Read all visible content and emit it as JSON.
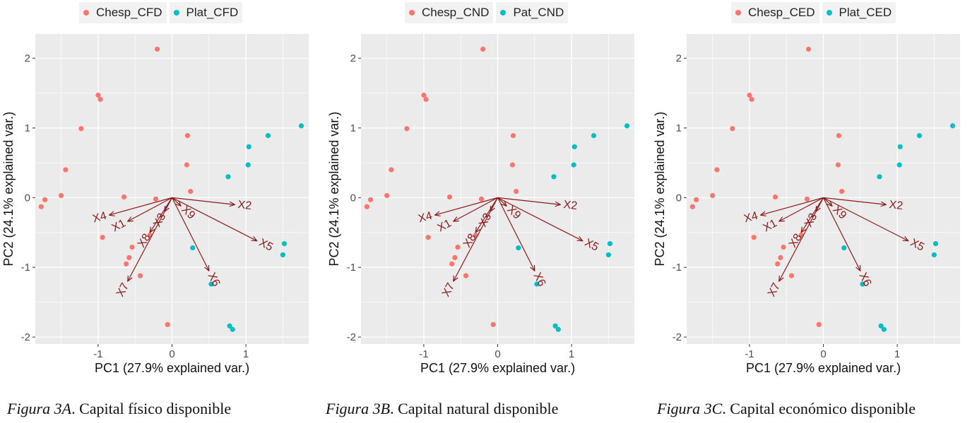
{
  "colors": {
    "group1": "#F8766D",
    "group2": "#00BFC4",
    "arrow": "#8B1A1A",
    "panel_bg": "#EBEBEB",
    "grid": "#FFFFFF"
  },
  "chart_data": [
    {
      "type": "scatter",
      "id": "A",
      "xlabel": "PC1 (27.9% explained var.)",
      "ylabel": "PC2 (24.1% explained var.)",
      "xlim": [
        -1.85,
        1.85
      ],
      "ylim": [
        -2.1,
        2.35
      ],
      "xticks": [
        -1,
        0,
        1
      ],
      "yticks": [
        -2,
        -1,
        0,
        1,
        2
      ],
      "legend": [
        "Chesp_CFD",
        "Plat_CFD"
      ],
      "series": [
        {
          "name": "Chesp_CFD",
          "points": [
            [
              -1.77,
              -0.13
            ],
            [
              -1.72,
              -0.03
            ],
            [
              -1.5,
              0.03
            ],
            [
              -1.44,
              0.4
            ],
            [
              -1.23,
              0.99
            ],
            [
              -1.0,
              1.47
            ],
            [
              -0.97,
              1.41
            ],
            [
              -0.94,
              -0.57
            ],
            [
              -0.65,
              0.01
            ],
            [
              -0.62,
              -0.95
            ],
            [
              -0.58,
              -0.86
            ],
            [
              -0.54,
              -0.71
            ],
            [
              -0.43,
              -1.12
            ],
            [
              -0.3,
              -0.54
            ],
            [
              -0.22,
              -0.02
            ],
            [
              -0.2,
              2.13
            ],
            [
              -0.06,
              -1.82
            ],
            [
              0.2,
              0.47
            ],
            [
              0.21,
              0.89
            ],
            [
              0.25,
              0.09
            ]
          ]
        },
        {
          "name": "Plat_CFD",
          "points": [
            [
              0.28,
              -0.72
            ],
            [
              0.53,
              -1.24
            ],
            [
              0.76,
              0.3
            ],
            [
              0.78,
              -1.84
            ],
            [
              0.82,
              -1.89
            ],
            [
              1.03,
              0.47
            ],
            [
              1.04,
              0.73
            ],
            [
              1.3,
              0.89
            ],
            [
              1.5,
              -0.82
            ],
            [
              1.52,
              -0.66
            ],
            [
              1.75,
              1.03
            ]
          ]
        }
      ],
      "loadings": [
        {
          "label": "X2",
          "x": 0.85,
          "y": -0.1
        },
        {
          "label": "X5",
          "x": 1.15,
          "y": -0.62
        },
        {
          "label": "X6",
          "x": 0.5,
          "y": -1.05
        },
        {
          "label": "X4",
          "x": -0.85,
          "y": -0.25
        },
        {
          "label": "X1",
          "x": -0.6,
          "y": -0.34
        },
        {
          "label": "X7",
          "x": -0.6,
          "y": -1.2
        },
        {
          "label": "X8",
          "x": -0.3,
          "y": -0.5
        },
        {
          "label": "X3",
          "x": -0.1,
          "y": -0.2
        },
        {
          "label": "X9",
          "x": 0.12,
          "y": -0.12
        }
      ]
    },
    {
      "type": "scatter",
      "id": "B",
      "xlabel": "PC1 (27.9% explained var.)",
      "ylabel": "PC2 (24.1% explained var.)",
      "xlim": [
        -1.85,
        1.85
      ],
      "ylim": [
        -2.1,
        2.35
      ],
      "xticks": [
        -1,
        0,
        1
      ],
      "yticks": [
        -2,
        -1,
        0,
        1,
        2
      ],
      "legend": [
        "Chesp_CND",
        "Pat_CND"
      ],
      "series": [
        {
          "name": "Chesp_CND",
          "points": [
            [
              -1.77,
              -0.13
            ],
            [
              -1.72,
              -0.03
            ],
            [
              -1.5,
              0.03
            ],
            [
              -1.44,
              0.4
            ],
            [
              -1.23,
              0.99
            ],
            [
              -1.0,
              1.47
            ],
            [
              -0.97,
              1.41
            ],
            [
              -0.94,
              -0.57
            ],
            [
              -0.65,
              0.01
            ],
            [
              -0.62,
              -0.95
            ],
            [
              -0.58,
              -0.86
            ],
            [
              -0.54,
              -0.71
            ],
            [
              -0.43,
              -1.12
            ],
            [
              -0.3,
              -0.54
            ],
            [
              -0.22,
              -0.02
            ],
            [
              -0.2,
              2.13
            ],
            [
              -0.06,
              -1.82
            ],
            [
              0.2,
              0.47
            ],
            [
              0.21,
              0.89
            ],
            [
              0.25,
              0.09
            ]
          ]
        },
        {
          "name": "Pat_CND",
          "points": [
            [
              0.28,
              -0.72
            ],
            [
              0.53,
              -1.24
            ],
            [
              0.76,
              0.3
            ],
            [
              0.78,
              -1.84
            ],
            [
              0.82,
              -1.89
            ],
            [
              1.03,
              0.47
            ],
            [
              1.04,
              0.73
            ],
            [
              1.3,
              0.89
            ],
            [
              1.5,
              -0.82
            ],
            [
              1.52,
              -0.66
            ],
            [
              1.75,
              1.03
            ]
          ]
        }
      ],
      "loadings": [
        {
          "label": "X2",
          "x": 0.85,
          "y": -0.1
        },
        {
          "label": "X5",
          "x": 1.15,
          "y": -0.62
        },
        {
          "label": "X6",
          "x": 0.5,
          "y": -1.05
        },
        {
          "label": "X4",
          "x": -0.85,
          "y": -0.25
        },
        {
          "label": "X1",
          "x": -0.6,
          "y": -0.34
        },
        {
          "label": "X7",
          "x": -0.6,
          "y": -1.2
        },
        {
          "label": "X8",
          "x": -0.3,
          "y": -0.5
        },
        {
          "label": "X3",
          "x": -0.1,
          "y": -0.2
        },
        {
          "label": "X9",
          "x": 0.12,
          "y": -0.12
        }
      ]
    },
    {
      "type": "scatter",
      "id": "C",
      "xlabel": "PC1 (27.9% explained var.)",
      "ylabel": "PC2 (24.1% explained var.)",
      "xlim": [
        -1.85,
        1.85
      ],
      "ylim": [
        -2.1,
        2.35
      ],
      "xticks": [
        -1,
        0,
        1
      ],
      "yticks": [
        -2,
        -1,
        0,
        1,
        2
      ],
      "legend": [
        "Chesp_CED",
        "Plat_CED"
      ],
      "series": [
        {
          "name": "Chesp_CED",
          "points": [
            [
              -1.77,
              -0.13
            ],
            [
              -1.72,
              -0.03
            ],
            [
              -1.5,
              0.03
            ],
            [
              -1.44,
              0.4
            ],
            [
              -1.23,
              0.99
            ],
            [
              -1.0,
              1.47
            ],
            [
              -0.97,
              1.41
            ],
            [
              -0.94,
              -0.57
            ],
            [
              -0.65,
              0.01
            ],
            [
              -0.62,
              -0.95
            ],
            [
              -0.58,
              -0.86
            ],
            [
              -0.54,
              -0.71
            ],
            [
              -0.43,
              -1.12
            ],
            [
              -0.3,
              -0.54
            ],
            [
              -0.22,
              -0.02
            ],
            [
              -0.2,
              2.13
            ],
            [
              -0.06,
              -1.82
            ],
            [
              0.2,
              0.47
            ],
            [
              0.21,
              0.89
            ],
            [
              0.25,
              0.09
            ]
          ]
        },
        {
          "name": "Plat_CED",
          "points": [
            [
              0.28,
              -0.72
            ],
            [
              0.53,
              -1.24
            ],
            [
              0.76,
              0.3
            ],
            [
              0.78,
              -1.84
            ],
            [
              0.82,
              -1.89
            ],
            [
              1.03,
              0.47
            ],
            [
              1.04,
              0.73
            ],
            [
              1.3,
              0.89
            ],
            [
              1.5,
              -0.82
            ],
            [
              1.52,
              -0.66
            ],
            [
              1.75,
              1.03
            ]
          ]
        }
      ],
      "loadings": [
        {
          "label": "X2",
          "x": 0.85,
          "y": -0.1
        },
        {
          "label": "X5",
          "x": 1.15,
          "y": -0.62
        },
        {
          "label": "X6",
          "x": 0.5,
          "y": -1.05
        },
        {
          "label": "X4",
          "x": -0.85,
          "y": -0.25
        },
        {
          "label": "X1",
          "x": -0.6,
          "y": -0.34
        },
        {
          "label": "X7",
          "x": -0.6,
          "y": -1.2
        },
        {
          "label": "X8",
          "x": -0.3,
          "y": -0.5
        },
        {
          "label": "X3",
          "x": -0.1,
          "y": -0.2
        },
        {
          "label": "X9",
          "x": 0.12,
          "y": -0.12
        }
      ]
    }
  ],
  "captions": [
    {
      "label": "Figura 3A",
      "text": ". Capital físico disponible"
    },
    {
      "label": "Figura 3B",
      "text": ". Capital natural disponible"
    },
    {
      "label": "Figura 3C",
      "text": ". Capital económico disponible"
    }
  ]
}
